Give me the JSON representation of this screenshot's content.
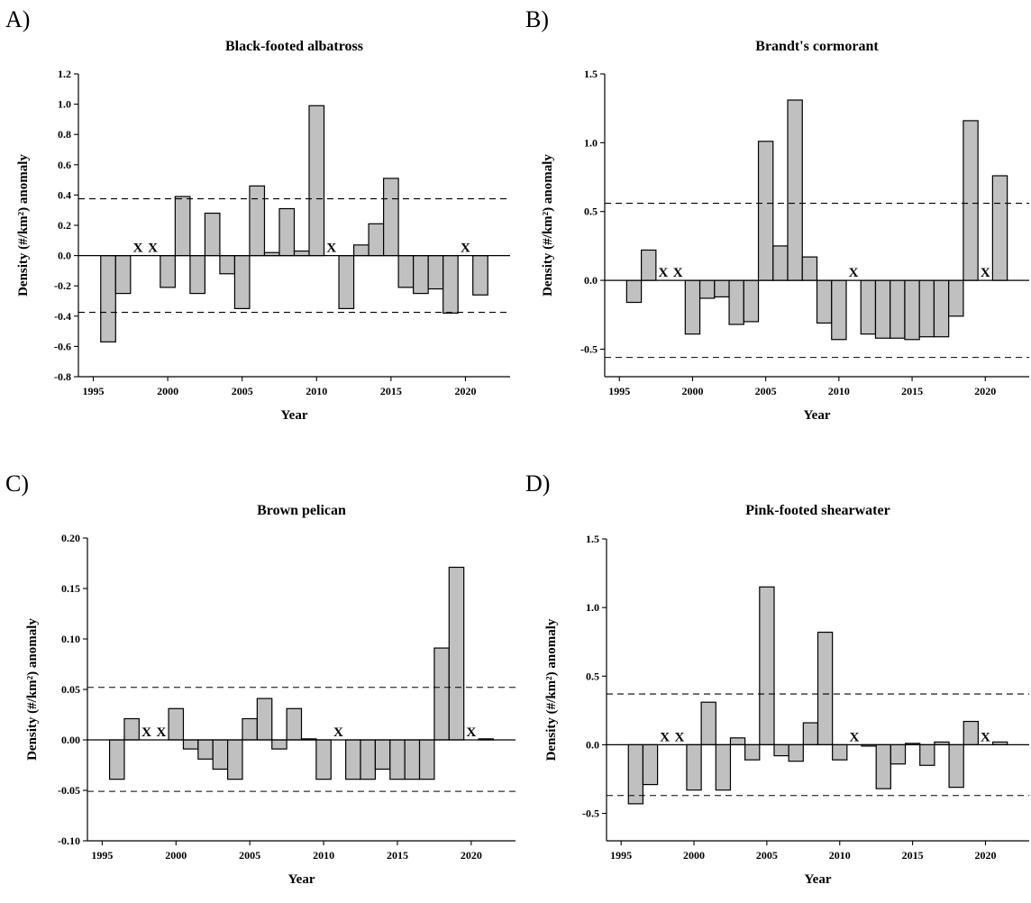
{
  "chart_data": [
    {
      "panel": "A)",
      "type": "bar",
      "title": "Black-footed albatross",
      "xlabel": "Year",
      "ylabel": "Density (#/km²) anomaly",
      "xlim": [
        1994,
        2023
      ],
      "ylim": [
        -0.8,
        1.2
      ],
      "xticks": [
        1995,
        2000,
        2005,
        2010,
        2015,
        2020
      ],
      "yticks": [
        -0.8,
        -0.6,
        -0.4,
        -0.2,
        0.0,
        0.2,
        0.4,
        0.6,
        0.8,
        1.0,
        1.2
      ],
      "ytick_labels": [
        "-0.8",
        "-0.6",
        "-0.4",
        "-0.2",
        "0.0",
        "0.2",
        "0.4",
        "0.6",
        "0.8",
        "1.0",
        "1.2"
      ],
      "threshold_lines": [
        0.375,
        -0.375
      ],
      "missing_label": "X",
      "missing_years": [
        1998,
        1999,
        2011,
        2020
      ],
      "bar_fill": "#c0c0c0",
      "years": [
        1996,
        1997,
        2000,
        2001,
        2002,
        2003,
        2004,
        2005,
        2006,
        2007,
        2008,
        2009,
        2010,
        2012,
        2013,
        2014,
        2015,
        2016,
        2017,
        2018,
        2019,
        2021
      ],
      "values": [
        -0.57,
        -0.25,
        -0.21,
        0.39,
        -0.25,
        0.28,
        -0.12,
        -0.35,
        0.46,
        0.02,
        0.31,
        0.03,
        0.99,
        -0.35,
        0.07,
        0.21,
        0.51,
        -0.21,
        -0.25,
        -0.22,
        -0.38,
        -0.26
      ]
    },
    {
      "panel": "B)",
      "type": "bar",
      "title": "Brandt's cormorant",
      "xlabel": "Year",
      "ylabel": "Density (#/km²) anomaly",
      "xlim": [
        1994,
        2023
      ],
      "ylim": [
        -0.7,
        1.5
      ],
      "xticks": [
        1995,
        2000,
        2005,
        2010,
        2015,
        2020
      ],
      "yticks": [
        -0.5,
        0.0,
        0.5,
        1.0,
        1.5
      ],
      "ytick_labels": [
        "-0.5",
        "0.0",
        "0.5",
        "1.0",
        "1.5"
      ],
      "threshold_lines": [
        0.56,
        -0.56
      ],
      "missing_label": "X",
      "missing_years": [
        1998,
        1999,
        2011,
        2020
      ],
      "bar_fill": "#c0c0c0",
      "years": [
        1996,
        1997,
        2000,
        2001,
        2002,
        2003,
        2004,
        2005,
        2006,
        2007,
        2008,
        2009,
        2010,
        2012,
        2013,
        2014,
        2015,
        2016,
        2017,
        2018,
        2019,
        2021
      ],
      "values": [
        -0.16,
        0.22,
        -0.39,
        -0.13,
        -0.12,
        -0.32,
        -0.3,
        1.01,
        0.25,
        1.31,
        0.17,
        -0.31,
        -0.43,
        -0.39,
        -0.42,
        -0.42,
        -0.43,
        -0.41,
        -0.41,
        -0.26,
        1.16,
        0.76
      ]
    },
    {
      "panel": "C)",
      "type": "bar",
      "title": "Brown pelican",
      "xlabel": "Year",
      "ylabel": "Density (#/km²) anomaly",
      "xlim": [
        1994,
        2023
      ],
      "ylim": [
        -0.1,
        0.2
      ],
      "xticks": [
        1995,
        2000,
        2005,
        2010,
        2015,
        2020
      ],
      "yticks": [
        -0.1,
        -0.05,
        0.0,
        0.05,
        0.1,
        0.15,
        0.2
      ],
      "ytick_labels": [
        "-0.10",
        "-0.05",
        "0.00",
        "0.05",
        "0.10",
        "0.15",
        "0.20"
      ],
      "threshold_lines": [
        0.052,
        -0.051
      ],
      "missing_label": "X",
      "missing_years": [
        1998,
        1999,
        2011,
        2020
      ],
      "bar_fill": "#c0c0c0",
      "years": [
        1996,
        1997,
        2000,
        2001,
        2002,
        2003,
        2004,
        2005,
        2006,
        2007,
        2008,
        2009,
        2010,
        2012,
        2013,
        2014,
        2015,
        2016,
        2017,
        2018,
        2019,
        2021
      ],
      "values": [
        -0.039,
        0.021,
        0.031,
        -0.009,
        -0.019,
        -0.029,
        -0.039,
        0.021,
        0.041,
        -0.009,
        0.031,
        0.001,
        -0.039,
        -0.039,
        -0.039,
        -0.029,
        -0.039,
        -0.039,
        -0.039,
        0.091,
        0.171,
        0.001
      ]
    },
    {
      "panel": "D)",
      "type": "bar",
      "title": "Pink-footed shearwater",
      "xlabel": "Year",
      "ylabel": "Density (#/km²) anomaly",
      "xlim": [
        1994,
        2023
      ],
      "ylim": [
        -0.7,
        1.5
      ],
      "xticks": [
        1995,
        2000,
        2005,
        2010,
        2015,
        2020
      ],
      "yticks": [
        -0.5,
        0.0,
        0.5,
        1.0,
        1.5
      ],
      "ytick_labels": [
        "-0.5",
        "0.0",
        "0.5",
        "1.0",
        "1.5"
      ],
      "threshold_lines": [
        0.37,
        -0.37
      ],
      "missing_label": "X",
      "missing_years": [
        1998,
        1999,
        2011,
        2020
      ],
      "bar_fill": "#c0c0c0",
      "years": [
        1996,
        1997,
        2000,
        2001,
        2002,
        2003,
        2004,
        2005,
        2006,
        2007,
        2008,
        2009,
        2010,
        2012,
        2013,
        2014,
        2015,
        2016,
        2017,
        2018,
        2019,
        2021
      ],
      "values": [
        -0.43,
        -0.29,
        -0.33,
        0.31,
        -0.33,
        0.05,
        -0.11,
        1.15,
        -0.08,
        -0.12,
        0.16,
        0.82,
        -0.11,
        -0.01,
        -0.32,
        -0.14,
        0.01,
        -0.15,
        0.02,
        -0.31,
        0.17,
        0.02
      ]
    }
  ]
}
